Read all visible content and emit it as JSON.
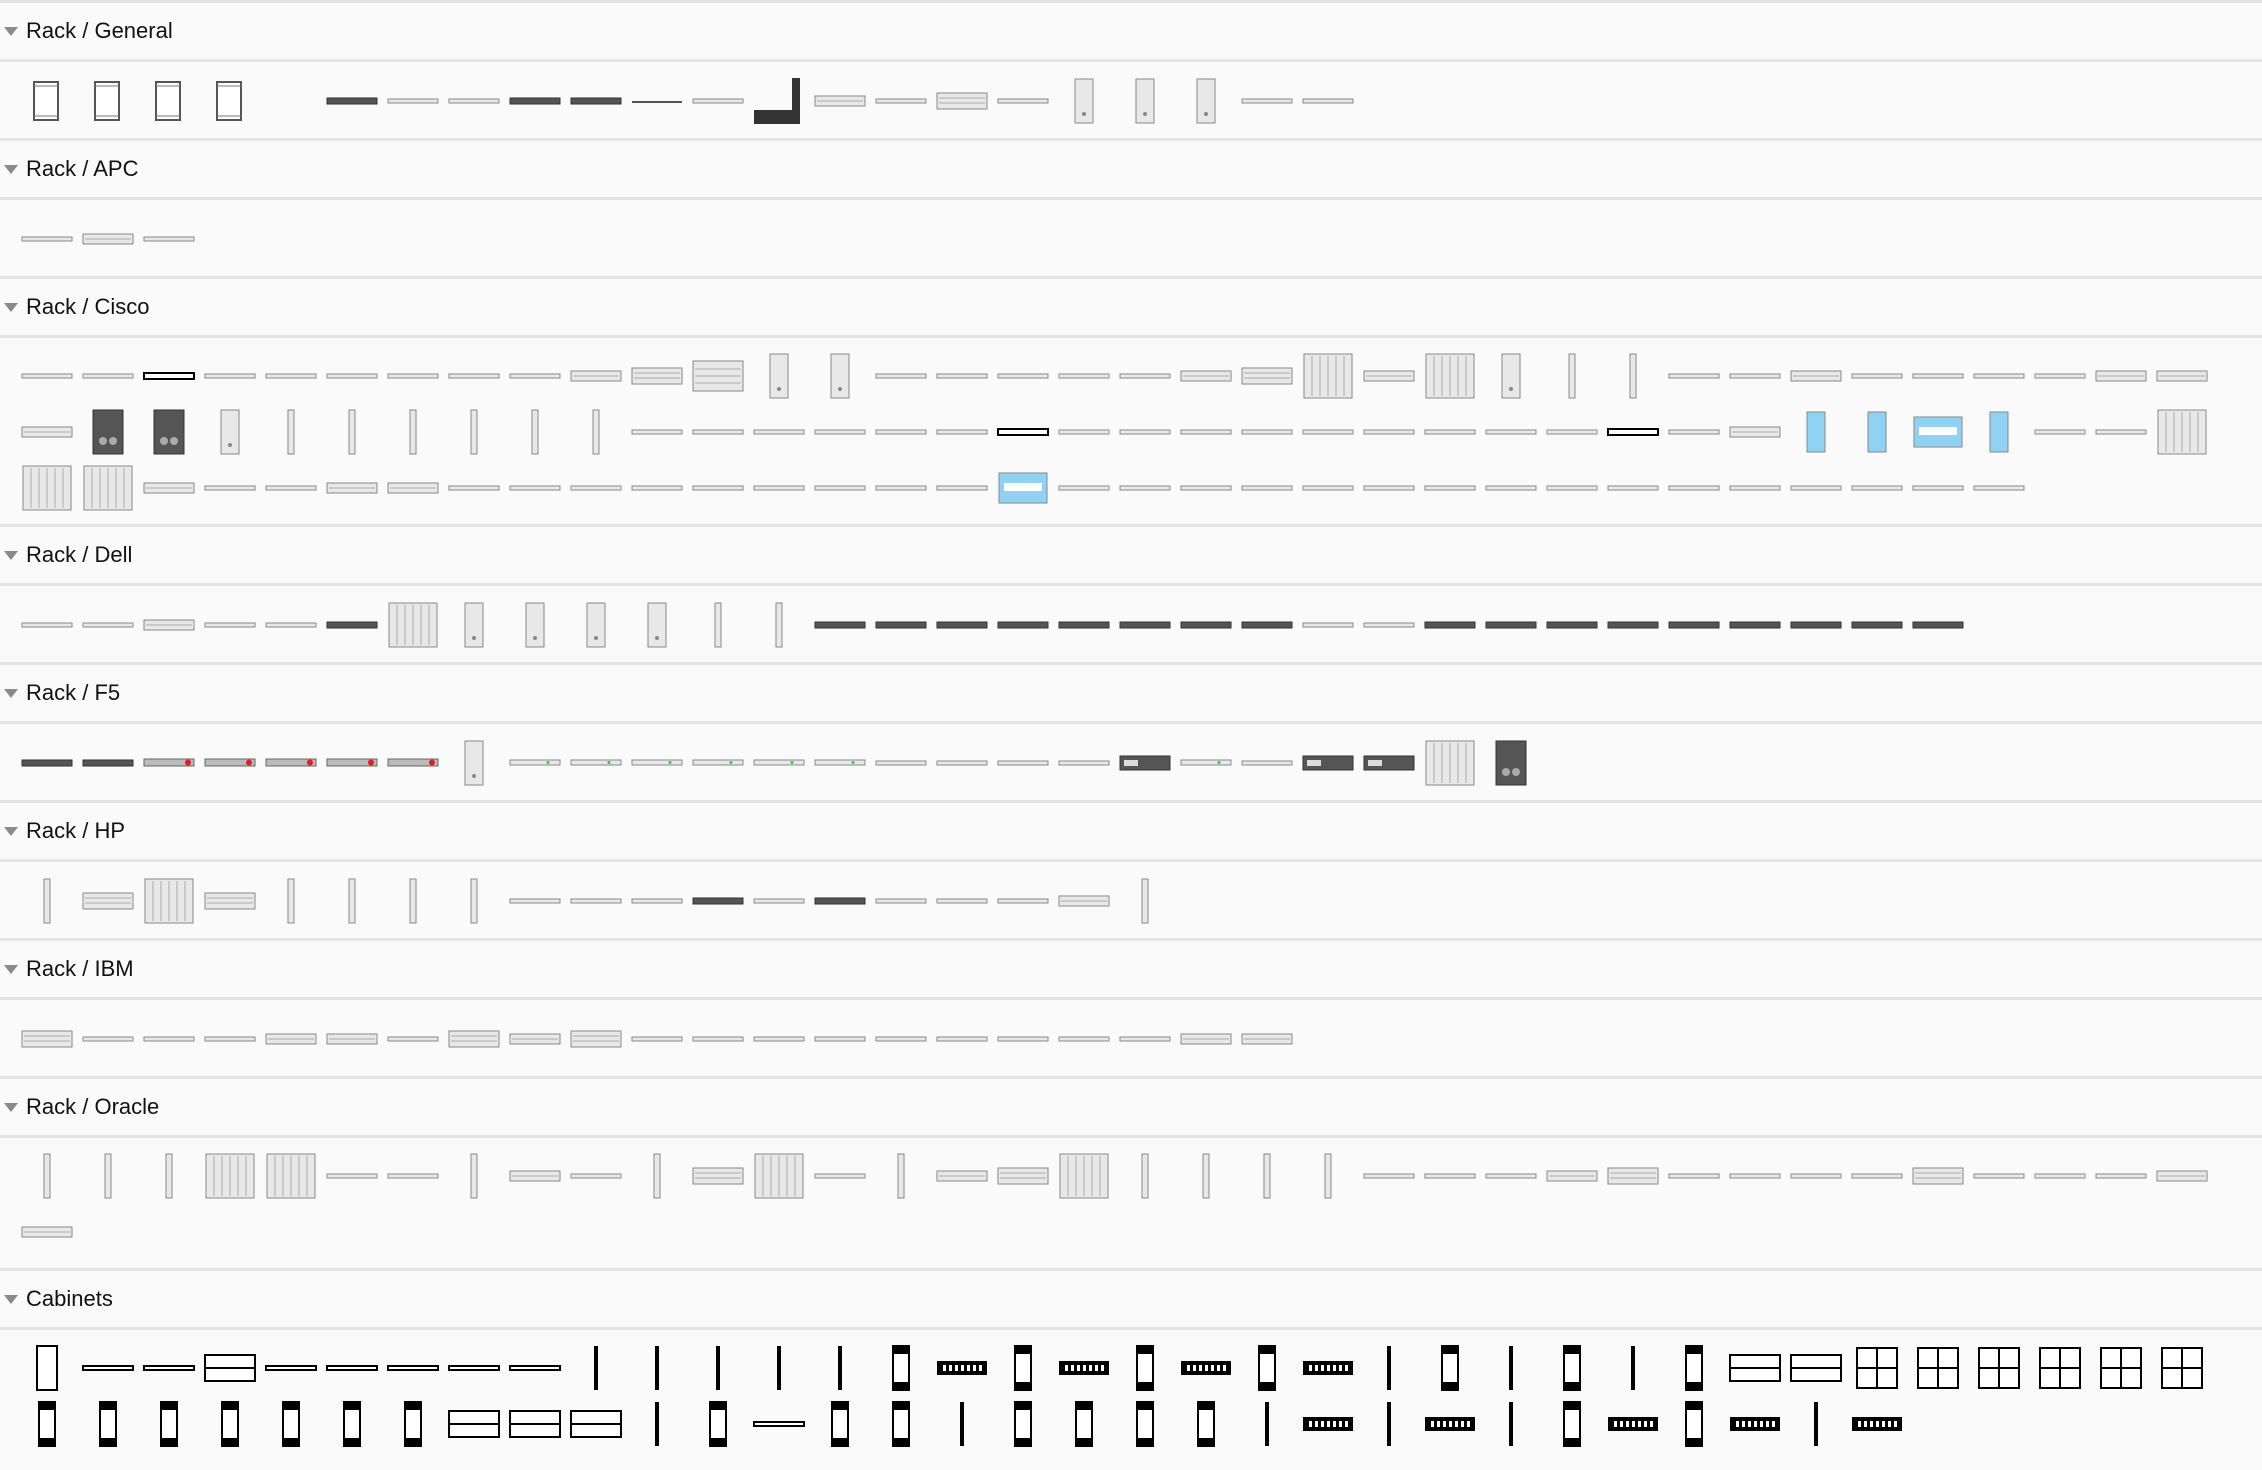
{
  "sections": [
    {
      "title": "Rack / General",
      "shapes": [
        "rack",
        "rack",
        "rack",
        "rack",
        "blank",
        "u1d",
        "u1",
        "u1",
        "u1d",
        "u1d",
        "line",
        "u1",
        "corner",
        "u2",
        "u1",
        "u3",
        "u1",
        "tower",
        "tower",
        "tower",
        "u1",
        "u1"
      ]
    },
    {
      "title": "Rack / APC",
      "shapes": [
        "u1",
        "u2",
        "u1"
      ]
    },
    {
      "title": "Rack / Cisco",
      "shapes": [
        "u1",
        "u1",
        "u1b",
        "u1",
        "u1",
        "u1",
        "u1",
        "u1",
        "u1",
        "u2",
        "u3",
        "u4",
        "tower",
        "tower",
        "u1",
        "u1",
        "u1",
        "u1",
        "u1",
        "u2",
        "u3",
        "panel",
        "u2",
        "panel",
        "tower",
        "vert",
        "vert",
        "u1",
        "u1",
        "u2",
        "u1",
        "u1",
        "u1",
        "u1",
        "u2",
        "u2",
        "u2",
        "towerd",
        "towerd",
        "tower",
        "vert",
        "vert",
        "vert",
        "vert",
        "vert",
        "vert",
        "u1",
        "u1",
        "u1",
        "u1",
        "u1",
        "u1",
        "u1b",
        "u1",
        "u1",
        "u1",
        "u1",
        "u1",
        "u1",
        "u1",
        "u1",
        "u1",
        "u1b",
        "u1",
        "u2",
        "blue",
        "blue",
        "blueb",
        "blue",
        "u1",
        "u1",
        "panel",
        "panel",
        "panel",
        "u2",
        "u1",
        "u1",
        "u2",
        "u2",
        "u1",
        "u1",
        "u1",
        "u1",
        "u1",
        "u1",
        "u1",
        "u1",
        "u1",
        "blueb",
        "u1",
        "u1",
        "u1",
        "u1",
        "u1",
        "u1",
        "u1",
        "u1",
        "u1",
        "u1",
        "u1",
        "u1",
        "u1",
        "u1",
        "u1",
        "u1"
      ]
    },
    {
      "title": "Rack / Dell",
      "shapes": [
        "u1",
        "u1",
        "u2",
        "u1",
        "u1",
        "u1d",
        "panel",
        "tower",
        "tower",
        "tower",
        "tower",
        "vert",
        "vert",
        "u1d",
        "u1d",
        "u1d",
        "u1d",
        "u1d",
        "u1d",
        "u1d",
        "u1d",
        "u1",
        "u1",
        "u1d",
        "u1d",
        "u1d",
        "u1d",
        "u1d",
        "u1d",
        "u1d",
        "u1d",
        "u1d"
      ]
    },
    {
      "title": "Rack / F5",
      "shapes": [
        "u1d",
        "u1d",
        "red",
        "red",
        "red",
        "red",
        "red",
        "tower",
        "u1g",
        "u1g",
        "u1g",
        "u1g",
        "u1g",
        "u1g",
        "u1",
        "u1",
        "u1",
        "u1",
        "u2d",
        "u1g",
        "u1",
        "u2d",
        "u2d",
        "panel",
        "towerd"
      ]
    },
    {
      "title": "Rack / HP",
      "shapes": [
        "vert",
        "u3",
        "panel",
        "u3",
        "vert",
        "vert",
        "vert",
        "vert",
        "u1",
        "u1",
        "u1",
        "u1d",
        "u1",
        "u1d",
        "u1",
        "u1",
        "u1",
        "u2",
        "vert"
      ]
    },
    {
      "title": "Rack / IBM",
      "shapes": [
        "u3",
        "u1",
        "u1",
        "u1",
        "u2",
        "u2",
        "u1",
        "u3",
        "u2",
        "u3",
        "u1",
        "u1",
        "u1",
        "u1",
        "u1",
        "u1",
        "u1",
        "u1",
        "u1",
        "u2",
        "u2"
      ]
    },
    {
      "title": "Rack / Oracle",
      "shapes": [
        "vert",
        "vert",
        "vert",
        "panel",
        "panel",
        "u1",
        "u1",
        "vert",
        "u2",
        "u1",
        "vert",
        "u3",
        "panel",
        "u1",
        "vert",
        "u2",
        "u3",
        "panel",
        "vert",
        "vert",
        "vert",
        "vert",
        "u1",
        "u1",
        "u1",
        "u2",
        "u3",
        "u1",
        "u1",
        "u1",
        "u1",
        "u3",
        "u1",
        "u1",
        "u1",
        "u2",
        "u2"
      ]
    },
    {
      "title": "Cabinets",
      "shapes": [
        "ctall",
        "cbar",
        "cbar",
        "cwide",
        "cbar",
        "cbar",
        "cbar",
        "cbar",
        "cbar",
        "cvert",
        "cvert",
        "cvert",
        "cvert",
        "cvert",
        "cmod",
        "cdark",
        "cmod",
        "cdark",
        "cmod",
        "cdark",
        "cmod",
        "cdark",
        "cvert",
        "cmod",
        "cvert",
        "cmod",
        "cvert",
        "cmod",
        "cwide",
        "cwide",
        "cgrid",
        "cgrid",
        "cgrid",
        "cgrid",
        "cgrid",
        "cgrid",
        "cmod",
        "cmod",
        "cmod",
        "cmod",
        "cmod",
        "cmod",
        "cmod",
        "cwide",
        "cwide",
        "cwide",
        "cvert",
        "cmod",
        "cbar",
        "cmod",
        "cmod",
        "cvert",
        "cmod",
        "cmod",
        "cmod",
        "cmod",
        "cvert",
        "cdark",
        "cvert",
        "cdark",
        "cvert",
        "cmod",
        "cdark",
        "cmod",
        "cdark",
        "cvert",
        "cdark"
      ]
    }
  ],
  "colors": {
    "accent_blue": "#8fd3f4",
    "status_red": "#e02020",
    "dark": "#555555"
  }
}
